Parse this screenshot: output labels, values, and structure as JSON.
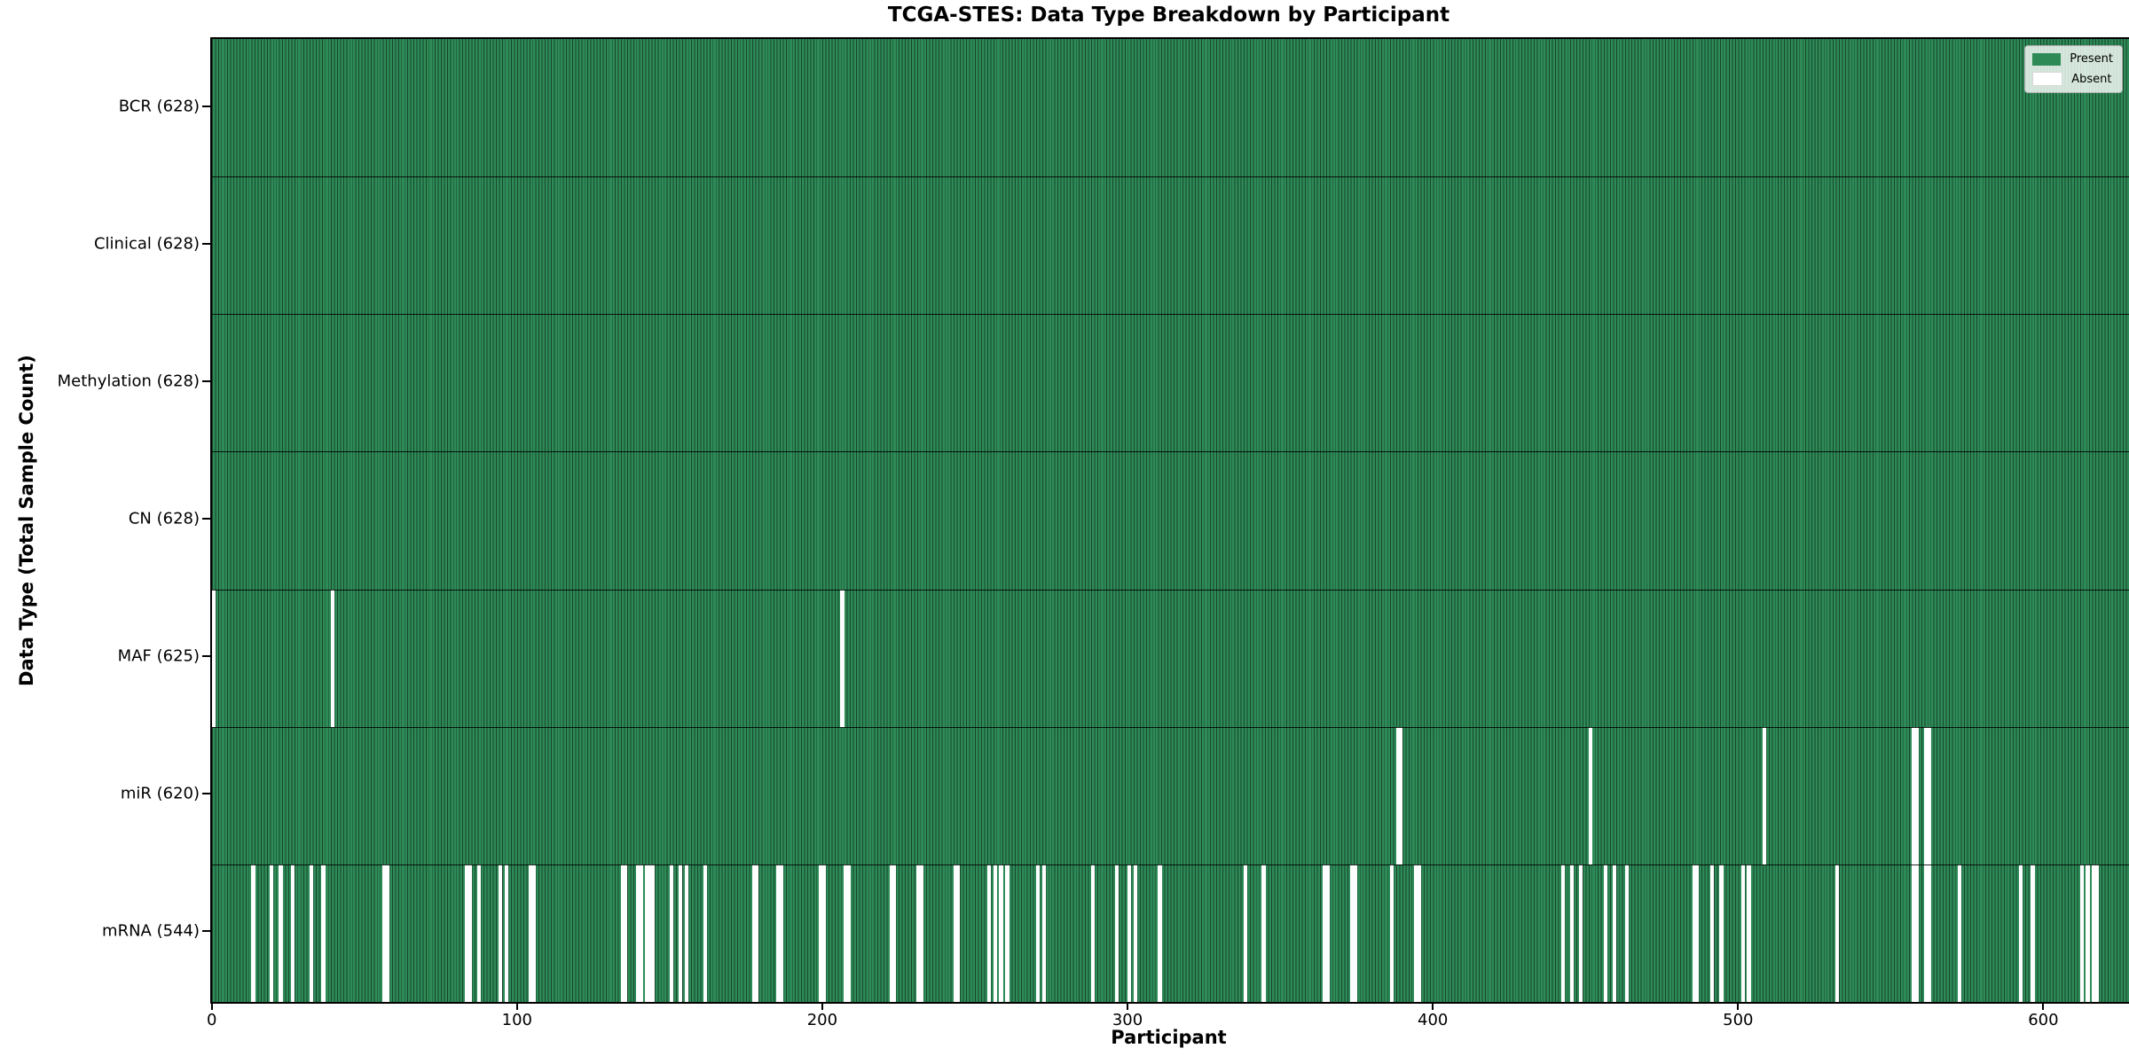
{
  "chart_data": {
    "type": "heatmap",
    "title": "TCGA-STES: Data Type Breakdown by Participant",
    "xlabel": "Participant",
    "ylabel": "Data Type (Total Sample Count)",
    "x_ticks": [
      0,
      100,
      200,
      300,
      400,
      500,
      600
    ],
    "x_range": [
      0,
      628
    ],
    "total_participants": 628,
    "legend": [
      "Present",
      "Absent"
    ],
    "legend_position": "upper right",
    "grid": false,
    "colors": {
      "present": "#2e8b57",
      "absent": "#ffffff",
      "bar_edge": "#17452c",
      "figure_background": "#ffffff",
      "axis": "#000000"
    },
    "rows": [
      {
        "label": "BCR (628)",
        "data_type": "BCR",
        "present_count": 628,
        "absent_count": 0,
        "absent_participants": []
      },
      {
        "label": "Clinical (628)",
        "data_type": "Clinical",
        "present_count": 628,
        "absent_count": 0,
        "absent_participants": []
      },
      {
        "label": "Methylation (628)",
        "data_type": "Methylation",
        "present_count": 628,
        "absent_count": 0,
        "absent_participants": []
      },
      {
        "label": "CN (628)",
        "data_type": "CN",
        "present_count": 628,
        "absent_count": 0,
        "absent_participants": []
      },
      {
        "label": "MAF (625)",
        "data_type": "MAF",
        "present_count": 625,
        "absent_count": 3,
        "absent_participants": [
          0,
          39,
          206
        ]
      },
      {
        "label": "miR (620)",
        "data_type": "miR",
        "present_count": 620,
        "absent_count": 8,
        "absent_participants": [
          388,
          389,
          451,
          508,
          557,
          558,
          561,
          562
        ]
      },
      {
        "label": "mRNA (544)",
        "data_type": "mRNA",
        "present_count": 544,
        "absent_count": 84,
        "absent_participants": [
          13,
          19,
          22,
          26,
          32,
          36,
          56,
          57,
          83,
          84,
          87,
          94,
          96,
          104,
          105,
          134,
          135,
          139,
          140,
          142,
          143,
          144,
          150,
          153,
          155,
          161,
          177,
          178,
          185,
          186,
          199,
          200,
          207,
          208,
          222,
          223,
          231,
          232,
          243,
          244,
          254,
          256,
          258,
          260,
          270,
          272,
          288,
          296,
          300,
          302,
          310,
          338,
          344,
          364,
          365,
          373,
          374,
          386,
          394,
          395,
          442,
          445,
          448,
          456,
          459,
          463,
          485,
          486,
          491,
          494,
          501,
          503,
          532,
          557,
          558,
          561,
          562,
          572,
          592,
          596,
          612,
          614,
          616,
          617
        ]
      }
    ]
  }
}
